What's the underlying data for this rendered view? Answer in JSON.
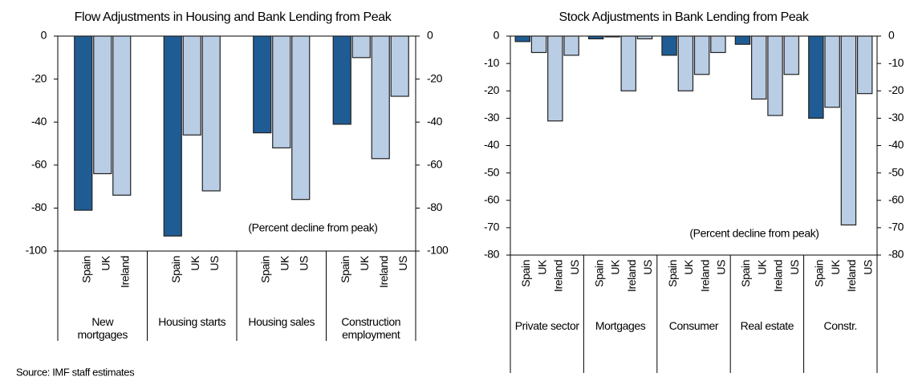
{
  "chart_data": [
    {
      "type": "bar",
      "title": "Flow Adjustments in Housing and Bank Lending from Peak",
      "annotation": "(Percent decline from peak)",
      "ylim": [
        -100,
        0
      ],
      "yticks": [
        0,
        -20,
        -40,
        -60,
        -80,
        -100
      ],
      "groups": [
        {
          "label": "New mortgages",
          "categories": [
            "Spain",
            "UK",
            "Ireland"
          ],
          "values": [
            -81,
            -64,
            -74
          ],
          "colors": [
            "#1f5c94",
            "#b9cde5",
            "#b9cde5"
          ]
        },
        {
          "label": "Housing starts",
          "categories": [
            "Spain",
            "UK",
            "US"
          ],
          "values": [
            -93,
            -46,
            -72
          ],
          "colors": [
            "#1f5c94",
            "#b9cde5",
            "#b9cde5"
          ]
        },
        {
          "label": "Housing sales",
          "categories": [
            "Spain",
            "UK",
            "US"
          ],
          "values": [
            -45,
            -52,
            -76
          ],
          "colors": [
            "#1f5c94",
            "#b9cde5",
            "#b9cde5"
          ]
        },
        {
          "label": "Construction employment",
          "categories": [
            "Spain",
            "UK",
            "Ireland",
            "US"
          ],
          "values": [
            -41,
            -10,
            -57,
            -28
          ],
          "colors": [
            "#1f5c94",
            "#b9cde5",
            "#b9cde5",
            "#b9cde5"
          ]
        }
      ]
    },
    {
      "type": "bar",
      "title": "Stock Adjustments in Bank Lending from Peak",
      "annotation": "(Percent decline from peak)",
      "ylim": [
        -80,
        0
      ],
      "yticks": [
        0,
        -10,
        -20,
        -30,
        -40,
        -50,
        -60,
        -70,
        -80
      ],
      "groups": [
        {
          "label": "Private sector",
          "categories": [
            "Spain",
            "UK",
            "Ireland",
            "US"
          ],
          "values": [
            -2,
            -6,
            -31,
            -7
          ],
          "colors": [
            "#1f5c94",
            "#b9cde5",
            "#b9cde5",
            "#b9cde5"
          ]
        },
        {
          "label": "Mortgages",
          "categories": [
            "Spain",
            "UK",
            "Ireland",
            "US"
          ],
          "values": [
            -1,
            0,
            -20,
            -1
          ],
          "colors": [
            "#1f5c94",
            "#b9cde5",
            "#b9cde5",
            "#b9cde5"
          ]
        },
        {
          "label": "Consumer",
          "categories": [
            "Spain",
            "UK",
            "Ireland",
            "US"
          ],
          "values": [
            -7,
            -20,
            -14,
            -6
          ],
          "colors": [
            "#1f5c94",
            "#b9cde5",
            "#b9cde5",
            "#b9cde5"
          ]
        },
        {
          "label": "Real estate",
          "categories": [
            "Spain",
            "UK",
            "Ireland",
            "US"
          ],
          "values": [
            -3,
            -23,
            -29,
            -14
          ],
          "colors": [
            "#1f5c94",
            "#b9cde5",
            "#b9cde5",
            "#b9cde5"
          ]
        },
        {
          "label": "Constr.",
          "categories": [
            "Spain",
            "UK",
            "Ireland",
            "US"
          ],
          "values": [
            -30,
            -26,
            -69,
            -21
          ],
          "colors": [
            "#1f5c94",
            "#b9cde5",
            "#b9cde5",
            "#b9cde5"
          ]
        }
      ]
    }
  ],
  "source": "Source: IMF staff estimates"
}
